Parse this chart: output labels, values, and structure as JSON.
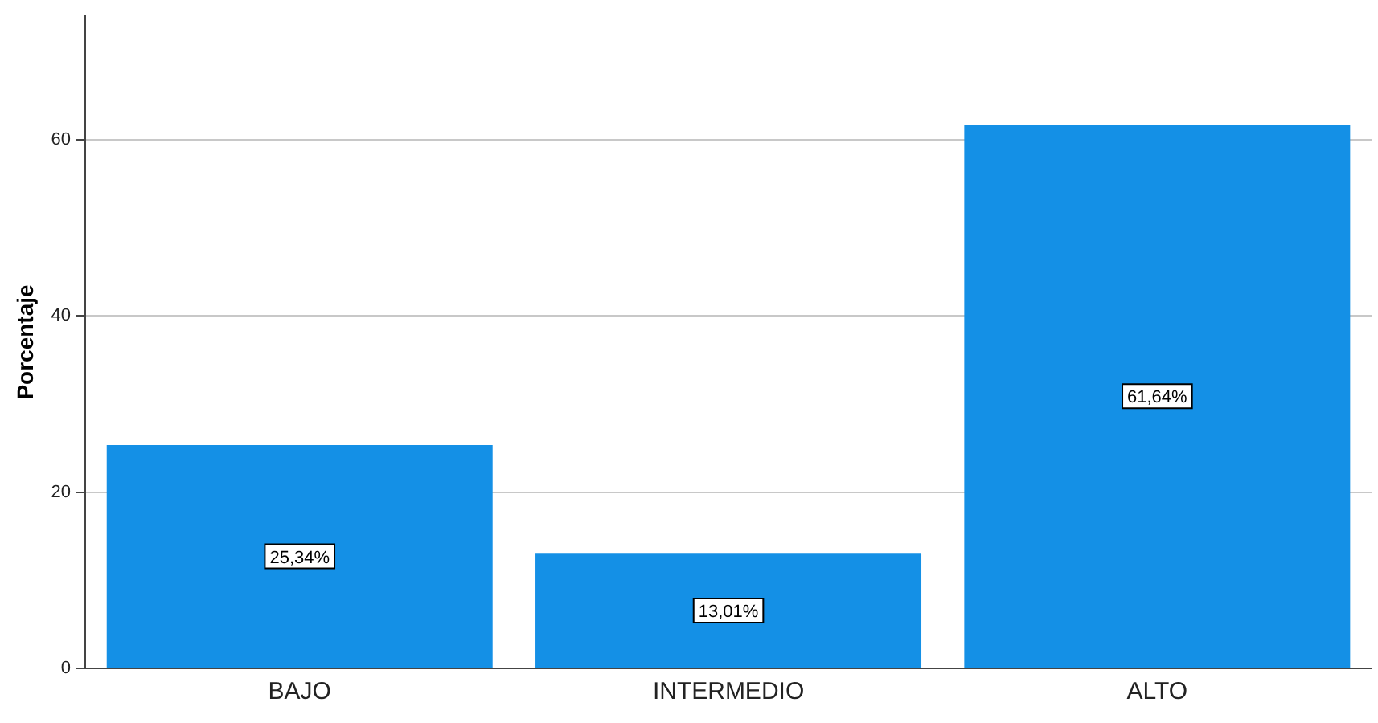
{
  "chart_data": {
    "type": "bar",
    "ylabel": "Porcentaje",
    "categories": [
      "BAJO",
      "INTERMEDIO",
      "ALTO"
    ],
    "values": [
      25.34,
      13.01,
      61.64
    ],
    "value_labels": [
      "25,34%",
      "13,01%",
      "61,64%"
    ],
    "color": "#1490e6",
    "ylim": [
      0,
      74
    ],
    "yticks": [
      0,
      20,
      40,
      60
    ],
    "grid": "y",
    "legend": false
  }
}
